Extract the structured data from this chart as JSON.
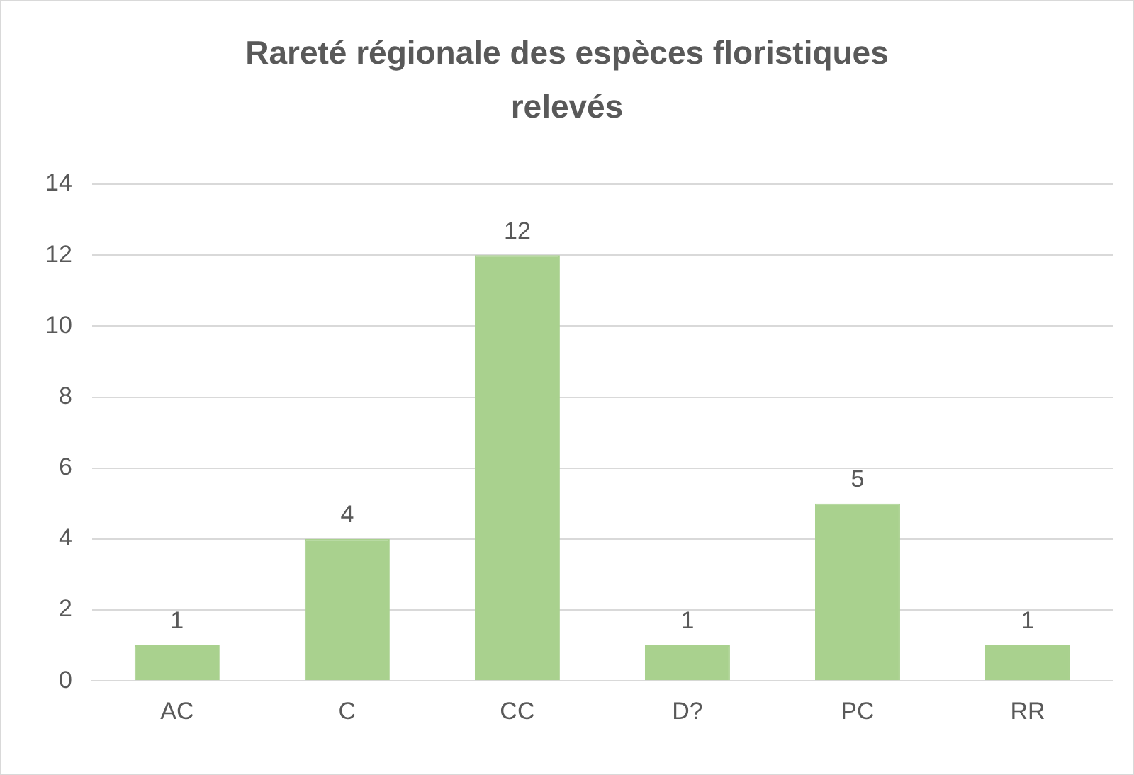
{
  "chart_data": {
    "type": "bar",
    "title": "Rareté régionale des espèces floristiques relevés",
    "categories": [
      "AC",
      "C",
      "CC",
      "D?",
      "PC",
      "RR"
    ],
    "values": [
      1,
      4,
      12,
      1,
      5,
      1
    ],
    "color": "#a9d18e",
    "ylim": [
      0,
      14
    ],
    "yticks": [
      0,
      2,
      4,
      6,
      8,
      10,
      12,
      14
    ],
    "grid": "y",
    "data_labels": true,
    "legend": false
  }
}
